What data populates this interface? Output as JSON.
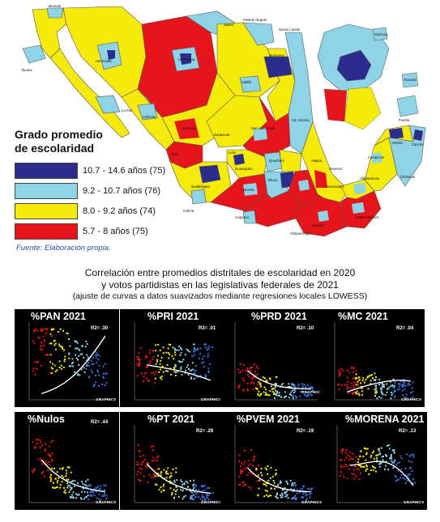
{
  "map": {
    "cities": [
      "Mexicali",
      "Juarez",
      "Tijuana",
      "Piedras Negras",
      "Nuevo Laredo",
      "Hermosillo",
      "Chihuahua",
      "Monterrey",
      "La Paz",
      "Culiacán",
      "Saltillo",
      "Durango",
      "Zacatecas",
      "Cd. Victoria",
      "San Luis Potosí",
      "Tepic",
      "Querétaro",
      "León",
      "Guanajuato",
      "Guadalajara",
      "Colima",
      "Morelia",
      "Toluca",
      "Pachuca",
      "Tlaxcala",
      "Puebla",
      "Cuernavaca",
      "Acapulco",
      "Chilpancingo",
      "Oaxaca",
      "Villahermosa",
      "Tuxtla Gutiérrez",
      "Campeche",
      "Mérida",
      "Chetumal",
      "Cancún",
      "Xalapa",
      "Veracruz"
    ],
    "colors": {
      "high": "#2b2c8c",
      "upper": "#8fd3e6",
      "middle": "#f5ea0a",
      "low": "#e8141c"
    }
  },
  "legend": {
    "title": "Grado promedio\nde escolaridad",
    "items": [
      {
        "label": "10.7 - 14.6 años (75)",
        "color": "#2b2c8c"
      },
      {
        "label": "9.2 - 10.7 años (76)",
        "color": "#8fd3e6"
      },
      {
        "label": "8.0 - 9.2 años (74)",
        "color": "#f5ea0a"
      },
      {
        "label": "5.7 - 8 años (75)",
        "color": "#e8141c"
      }
    ]
  },
  "source": "Fuente: Elaboración propia.",
  "figure": {
    "title_line1": "Correlación entre promedios distritales de escolaridad en 2020",
    "title_line2": "y votos partidistas en las legislativas federales de 2021",
    "subtitle": "(ajuste de curvas a datos suavizados mediante regresiones locales LOWESS)"
  },
  "panels": [
    {
      "title": "%PAN 2021",
      "r2": "R2= .30",
      "brand": "GRAPHICS"
    },
    {
      "title": "%PRI 2021",
      "r2": "R2= .01",
      "brand": "GRAPHICS"
    },
    {
      "title": "%PRD 2021",
      "r2": "R2= .10",
      "brand": "GRAPHICS"
    },
    {
      "title": "%MC 2021",
      "r2": "R2= .04",
      "brand": "GRAPHICS"
    },
    {
      "title": "%Nulos",
      "r2": "R2= .44",
      "brand": "GRAPHICS"
    },
    {
      "title": "%PT 2021",
      "r2": "R2= .29",
      "brand": "GRAPHICS"
    },
    {
      "title": "%PVEM 2021",
      "r2": "R2= .19",
      "brand": "GRAPHICS"
    },
    {
      "title": "%MORENA 2021",
      "r2": "R2= .13",
      "brand": "GRAPHICS"
    }
  ]
}
